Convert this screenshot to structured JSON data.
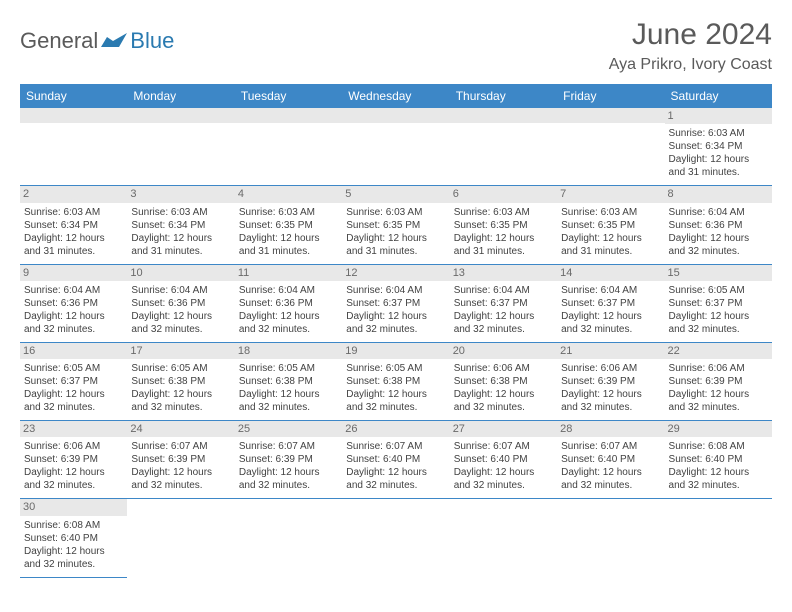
{
  "brand": {
    "word1": "General",
    "word2": "Blue",
    "accent_color": "#2a7ab0",
    "text_color": "#5a5a5a"
  },
  "title": "June 2024",
  "location": "Aya Prikro, Ivory Coast",
  "theme": {
    "header_bg": "#3d87c7",
    "header_fg": "#ffffff",
    "daynum_bg": "#e8e8e8",
    "border_color": "#3d87c7"
  },
  "day_headers": [
    "Sunday",
    "Monday",
    "Tuesday",
    "Wednesday",
    "Thursday",
    "Friday",
    "Saturday"
  ],
  "weeks": [
    [
      {
        "num": "",
        "lines": []
      },
      {
        "num": "",
        "lines": []
      },
      {
        "num": "",
        "lines": []
      },
      {
        "num": "",
        "lines": []
      },
      {
        "num": "",
        "lines": []
      },
      {
        "num": "",
        "lines": []
      },
      {
        "num": "1",
        "lines": [
          "Sunrise: 6:03 AM",
          "Sunset: 6:34 PM",
          "Daylight: 12 hours",
          "and 31 minutes."
        ]
      }
    ],
    [
      {
        "num": "2",
        "lines": [
          "Sunrise: 6:03 AM",
          "Sunset: 6:34 PM",
          "Daylight: 12 hours",
          "and 31 minutes."
        ]
      },
      {
        "num": "3",
        "lines": [
          "Sunrise: 6:03 AM",
          "Sunset: 6:34 PM",
          "Daylight: 12 hours",
          "and 31 minutes."
        ]
      },
      {
        "num": "4",
        "lines": [
          "Sunrise: 6:03 AM",
          "Sunset: 6:35 PM",
          "Daylight: 12 hours",
          "and 31 minutes."
        ]
      },
      {
        "num": "5",
        "lines": [
          "Sunrise: 6:03 AM",
          "Sunset: 6:35 PM",
          "Daylight: 12 hours",
          "and 31 minutes."
        ]
      },
      {
        "num": "6",
        "lines": [
          "Sunrise: 6:03 AM",
          "Sunset: 6:35 PM",
          "Daylight: 12 hours",
          "and 31 minutes."
        ]
      },
      {
        "num": "7",
        "lines": [
          "Sunrise: 6:03 AM",
          "Sunset: 6:35 PM",
          "Daylight: 12 hours",
          "and 31 minutes."
        ]
      },
      {
        "num": "8",
        "lines": [
          "Sunrise: 6:04 AM",
          "Sunset: 6:36 PM",
          "Daylight: 12 hours",
          "and 32 minutes."
        ]
      }
    ],
    [
      {
        "num": "9",
        "lines": [
          "Sunrise: 6:04 AM",
          "Sunset: 6:36 PM",
          "Daylight: 12 hours",
          "and 32 minutes."
        ]
      },
      {
        "num": "10",
        "lines": [
          "Sunrise: 6:04 AM",
          "Sunset: 6:36 PM",
          "Daylight: 12 hours",
          "and 32 minutes."
        ]
      },
      {
        "num": "11",
        "lines": [
          "Sunrise: 6:04 AM",
          "Sunset: 6:36 PM",
          "Daylight: 12 hours",
          "and 32 minutes."
        ]
      },
      {
        "num": "12",
        "lines": [
          "Sunrise: 6:04 AM",
          "Sunset: 6:37 PM",
          "Daylight: 12 hours",
          "and 32 minutes."
        ]
      },
      {
        "num": "13",
        "lines": [
          "Sunrise: 6:04 AM",
          "Sunset: 6:37 PM",
          "Daylight: 12 hours",
          "and 32 minutes."
        ]
      },
      {
        "num": "14",
        "lines": [
          "Sunrise: 6:04 AM",
          "Sunset: 6:37 PM",
          "Daylight: 12 hours",
          "and 32 minutes."
        ]
      },
      {
        "num": "15",
        "lines": [
          "Sunrise: 6:05 AM",
          "Sunset: 6:37 PM",
          "Daylight: 12 hours",
          "and 32 minutes."
        ]
      }
    ],
    [
      {
        "num": "16",
        "lines": [
          "Sunrise: 6:05 AM",
          "Sunset: 6:37 PM",
          "Daylight: 12 hours",
          "and 32 minutes."
        ]
      },
      {
        "num": "17",
        "lines": [
          "Sunrise: 6:05 AM",
          "Sunset: 6:38 PM",
          "Daylight: 12 hours",
          "and 32 minutes."
        ]
      },
      {
        "num": "18",
        "lines": [
          "Sunrise: 6:05 AM",
          "Sunset: 6:38 PM",
          "Daylight: 12 hours",
          "and 32 minutes."
        ]
      },
      {
        "num": "19",
        "lines": [
          "Sunrise: 6:05 AM",
          "Sunset: 6:38 PM",
          "Daylight: 12 hours",
          "and 32 minutes."
        ]
      },
      {
        "num": "20",
        "lines": [
          "Sunrise: 6:06 AM",
          "Sunset: 6:38 PM",
          "Daylight: 12 hours",
          "and 32 minutes."
        ]
      },
      {
        "num": "21",
        "lines": [
          "Sunrise: 6:06 AM",
          "Sunset: 6:39 PM",
          "Daylight: 12 hours",
          "and 32 minutes."
        ]
      },
      {
        "num": "22",
        "lines": [
          "Sunrise: 6:06 AM",
          "Sunset: 6:39 PM",
          "Daylight: 12 hours",
          "and 32 minutes."
        ]
      }
    ],
    [
      {
        "num": "23",
        "lines": [
          "Sunrise: 6:06 AM",
          "Sunset: 6:39 PM",
          "Daylight: 12 hours",
          "and 32 minutes."
        ]
      },
      {
        "num": "24",
        "lines": [
          "Sunrise: 6:07 AM",
          "Sunset: 6:39 PM",
          "Daylight: 12 hours",
          "and 32 minutes."
        ]
      },
      {
        "num": "25",
        "lines": [
          "Sunrise: 6:07 AM",
          "Sunset: 6:39 PM",
          "Daylight: 12 hours",
          "and 32 minutes."
        ]
      },
      {
        "num": "26",
        "lines": [
          "Sunrise: 6:07 AM",
          "Sunset: 6:40 PM",
          "Daylight: 12 hours",
          "and 32 minutes."
        ]
      },
      {
        "num": "27",
        "lines": [
          "Sunrise: 6:07 AM",
          "Sunset: 6:40 PM",
          "Daylight: 12 hours",
          "and 32 minutes."
        ]
      },
      {
        "num": "28",
        "lines": [
          "Sunrise: 6:07 AM",
          "Sunset: 6:40 PM",
          "Daylight: 12 hours",
          "and 32 minutes."
        ]
      },
      {
        "num": "29",
        "lines": [
          "Sunrise: 6:08 AM",
          "Sunset: 6:40 PM",
          "Daylight: 12 hours",
          "and 32 minutes."
        ]
      }
    ],
    [
      {
        "num": "30",
        "lines": [
          "Sunrise: 6:08 AM",
          "Sunset: 6:40 PM",
          "Daylight: 12 hours",
          "and 32 minutes."
        ]
      },
      {
        "num": "",
        "lines": []
      },
      {
        "num": "",
        "lines": []
      },
      {
        "num": "",
        "lines": []
      },
      {
        "num": "",
        "lines": []
      },
      {
        "num": "",
        "lines": []
      },
      {
        "num": "",
        "lines": []
      }
    ]
  ]
}
